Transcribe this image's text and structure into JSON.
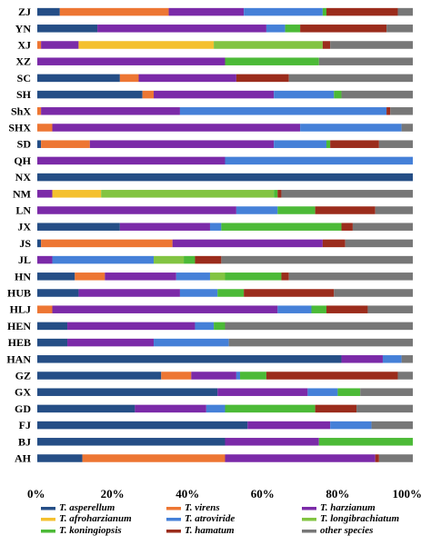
{
  "chart_data": {
    "type": "bar",
    "orientation": "horizontal",
    "stacked": "percent",
    "categories": [
      "ZJ",
      "YN",
      "XJ",
      "XZ",
      "SC",
      "SH",
      "ShX",
      "SHX",
      "SD",
      "QH",
      "NX",
      "NM",
      "LN",
      "JX",
      "JS",
      "JL",
      "HN",
      "HUB",
      "HLJ",
      "HEN",
      "HEB",
      "HAN",
      "GZ",
      "GX",
      "GD",
      "FJ",
      "BJ",
      "AH"
    ],
    "x_ticks": [
      "0%",
      "20%",
      "40%",
      "60%",
      "80%",
      "100%"
    ],
    "xlim": [
      0,
      100
    ],
    "legend_position": "bottom",
    "series": [
      {
        "name": "T. asperellum",
        "color": "#254e86",
        "values": [
          6,
          16,
          0,
          0,
          22,
          28,
          0,
          0,
          1,
          0,
          100,
          0,
          0,
          22,
          1,
          0,
          10,
          11,
          0,
          8,
          8,
          81,
          33,
          48,
          26,
          56,
          50,
          12
        ]
      },
      {
        "name": "T. virens",
        "color": "#ed7633",
        "values": [
          29,
          0,
          1,
          0,
          5,
          3,
          1,
          4,
          13,
          0,
          0,
          0,
          0,
          0,
          35,
          0,
          8,
          0,
          4,
          0,
          0,
          0,
          8,
          0,
          0,
          0,
          0,
          38
        ]
      },
      {
        "name": "T. harzianum",
        "color": "#7b2aa8",
        "values": [
          20,
          45,
          10,
          50,
          26,
          32,
          37,
          66,
          49,
          50,
          0,
          4,
          53,
          24,
          40,
          4,
          19,
          27,
          60,
          34,
          23,
          11,
          12,
          24,
          19,
          22,
          25,
          40
        ]
      },
      {
        "name": "T. afroharzianum",
        "color": "#f4c02f",
        "values": [
          0,
          0,
          36,
          0,
          0,
          0,
          0,
          0,
          0,
          0,
          0,
          13,
          0,
          0,
          0,
          0,
          0,
          0,
          0,
          0,
          0,
          0,
          0,
          0,
          0,
          0,
          0,
          0
        ]
      },
      {
        "name": "T. atroviride",
        "color": "#4580d8",
        "values": [
          21,
          5,
          0,
          0,
          0,
          16,
          55,
          27,
          14,
          50,
          0,
          0,
          11,
          3,
          0,
          27,
          9,
          10,
          9,
          5,
          20,
          5,
          1,
          8,
          5,
          11,
          0,
          0
        ]
      },
      {
        "name": "T. longibrachiatum",
        "color": "#82c442",
        "values": [
          0,
          0,
          29,
          0,
          0,
          0,
          0,
          0,
          0,
          0,
          0,
          46,
          0,
          0,
          0,
          8,
          4,
          0,
          0,
          0,
          0,
          0,
          0,
          0,
          0,
          0,
          0,
          0
        ]
      },
      {
        "name": "T. koningiopsis",
        "color": "#4cba37",
        "values": [
          1,
          4,
          0,
          25,
          0,
          2,
          0,
          0,
          1,
          0,
          0,
          1,
          10,
          32,
          0,
          3,
          15,
          7,
          4,
          3,
          0,
          0,
          7,
          6,
          24,
          0,
          25,
          0
        ]
      },
      {
        "name": "T. hamatum",
        "color": "#9b2c1c",
        "values": [
          19,
          23,
          2,
          0,
          14,
          0,
          1,
          0,
          13,
          0,
          0,
          1,
          16,
          3,
          6,
          7,
          2,
          24,
          11,
          0,
          0,
          0,
          35,
          0,
          11,
          0,
          0,
          1
        ]
      },
      {
        "name": "other species",
        "color": "#777777",
        "values": [
          4,
          7,
          22,
          25,
          33,
          19,
          6,
          3,
          9,
          0,
          0,
          35,
          10,
          16,
          18,
          51,
          33,
          21,
          12,
          50,
          49,
          3,
          4,
          14,
          15,
          11,
          0,
          9
        ]
      }
    ]
  }
}
